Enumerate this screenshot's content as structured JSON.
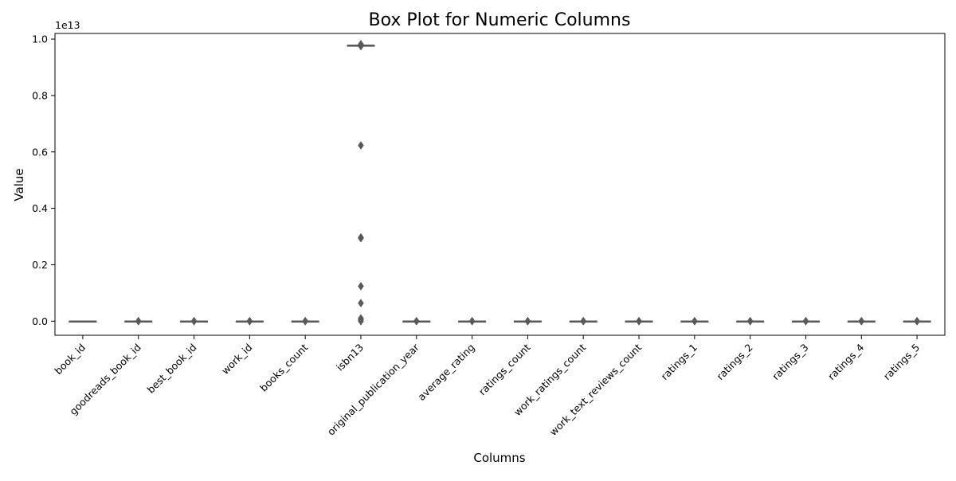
{
  "chart_data": {
    "type": "box",
    "title": "Box Plot for Numeric Columns",
    "xlabel": "Columns",
    "ylabel": "Value",
    "y_scale_label": "1e13",
    "ylim": [
      -0.05,
      1.02
    ],
    "y_unit_multiplier": 10000000000000.0,
    "yticks": [
      0.0,
      0.2,
      0.4,
      0.6,
      0.8,
      1.0
    ],
    "ytick_labels": [
      "0.0",
      "0.2",
      "0.4",
      "0.6",
      "0.8",
      "1.0"
    ],
    "grid": false,
    "categories": [
      "book_id",
      "goodreads_book_id",
      "best_book_id",
      "work_id",
      "books_count",
      "isbn13",
      "original_publication_year",
      "average_rating",
      "ratings_count",
      "work_ratings_count",
      "work_text_reviews_count",
      "ratings_1",
      "ratings_2",
      "ratings_3",
      "ratings_4",
      "ratings_5"
    ],
    "boxes": [
      {
        "name": "book_id",
        "q1": 0,
        "median": 0,
        "q3": 0,
        "whisker_low": 0,
        "whisker_high": 0,
        "outliers": []
      },
      {
        "name": "goodreads_book_id",
        "q1": 0,
        "median": 0,
        "q3": 0,
        "whisker_low": 0,
        "whisker_high": 0,
        "outliers": [
          0.0,
          0.0,
          0.0
        ]
      },
      {
        "name": "best_book_id",
        "q1": 0,
        "median": 0,
        "q3": 0,
        "whisker_low": 0,
        "whisker_high": 0,
        "outliers": [
          0.0,
          0.0,
          0.0
        ]
      },
      {
        "name": "work_id",
        "q1": 0,
        "median": 0,
        "q3": 0,
        "whisker_low": 0,
        "whisker_high": 0,
        "outliers": [
          0.0,
          0.0,
          0.0
        ]
      },
      {
        "name": "books_count",
        "q1": 0,
        "median": 0,
        "q3": 0,
        "whisker_low": 0,
        "whisker_high": 0,
        "outliers": [
          0.0,
          0.0,
          0.0
        ]
      },
      {
        "name": "isbn13",
        "q1": 0.978,
        "median": 0.978,
        "q3": 0.978,
        "whisker_low": 0.978,
        "whisker_high": 0.978,
        "outliers": [
          0.975,
          0.98,
          0.982,
          0.623,
          0.297,
          0.294,
          0.124,
          0.064,
          0.01,
          0.005,
          0.0
        ]
      },
      {
        "name": "original_publication_year",
        "q1": 0,
        "median": 0,
        "q3": 0,
        "whisker_low": 0,
        "whisker_high": 0,
        "outliers": [
          0.0,
          0.0
        ]
      },
      {
        "name": "average_rating",
        "q1": 0,
        "median": 0,
        "q3": 0,
        "whisker_low": 0,
        "whisker_high": 0,
        "outliers": [
          0.0,
          0.0
        ]
      },
      {
        "name": "ratings_count",
        "q1": 0,
        "median": 0,
        "q3": 0,
        "whisker_low": 0,
        "whisker_high": 0,
        "outliers": [
          0.0,
          0.0,
          0.0
        ]
      },
      {
        "name": "work_ratings_count",
        "q1": 0,
        "median": 0,
        "q3": 0,
        "whisker_low": 0,
        "whisker_high": 0,
        "outliers": [
          0.0,
          0.0,
          0.0
        ]
      },
      {
        "name": "work_text_reviews_count",
        "q1": 0,
        "median": 0,
        "q3": 0,
        "whisker_low": 0,
        "whisker_high": 0,
        "outliers": [
          0.0,
          0.0,
          0.0
        ]
      },
      {
        "name": "ratings_1",
        "q1": 0,
        "median": 0,
        "q3": 0,
        "whisker_low": 0,
        "whisker_high": 0,
        "outliers": [
          0.0,
          0.0,
          0.0
        ]
      },
      {
        "name": "ratings_2",
        "q1": 0,
        "median": 0,
        "q3": 0,
        "whisker_low": 0,
        "whisker_high": 0,
        "outliers": [
          0.0,
          0.0,
          0.0
        ]
      },
      {
        "name": "ratings_3",
        "q1": 0,
        "median": 0,
        "q3": 0,
        "whisker_low": 0,
        "whisker_high": 0,
        "outliers": [
          0.0,
          0.0,
          0.0
        ]
      },
      {
        "name": "ratings_4",
        "q1": 0,
        "median": 0,
        "q3": 0,
        "whisker_low": 0,
        "whisker_high": 0,
        "outliers": [
          0.0,
          0.0,
          0.0
        ]
      },
      {
        "name": "ratings_5",
        "q1": 0,
        "median": 0,
        "q3": 0,
        "whisker_low": 0,
        "whisker_high": 0,
        "outliers": [
          0.0,
          0.0,
          0.0
        ]
      }
    ],
    "colors": {
      "box_edge": "#595959",
      "box_fill": "#ffffff",
      "outlier": "#595959",
      "axes": "#000000"
    }
  }
}
